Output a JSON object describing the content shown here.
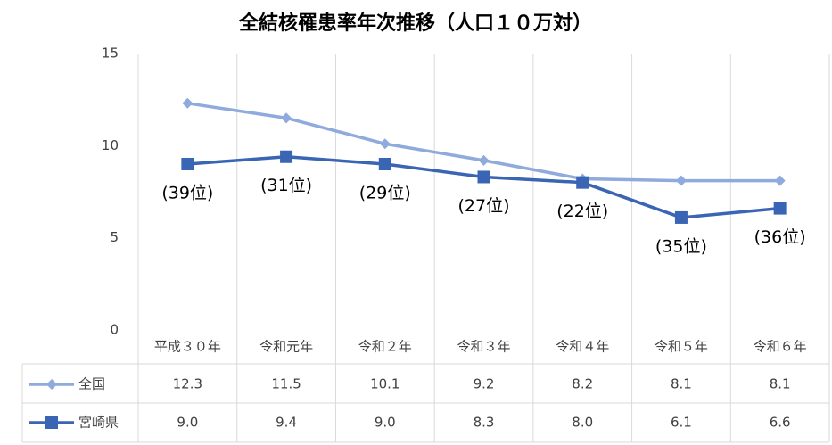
{
  "chart_data": {
    "type": "line",
    "title": "全結核罹患率年次推移（人口１０万対）",
    "categories": [
      "平成３０年",
      "令和元年",
      "令和２年",
      "令和３年",
      "令和４年",
      "令和５年",
      "令和６年"
    ],
    "series": [
      {
        "name": "全国",
        "color": "#8faadc",
        "marker": "diamond",
        "values": [
          12.3,
          11.5,
          10.1,
          9.2,
          8.2,
          8.1,
          8.1
        ],
        "value_labels": [
          "12.3",
          "11.5",
          "10.1",
          "9.2",
          "8.2",
          "8.1",
          "8.1"
        ]
      },
      {
        "name": "宮崎県",
        "color": "#3a64b4",
        "marker": "square",
        "values": [
          9.0,
          9.4,
          9.0,
          8.3,
          8.0,
          6.1,
          6.6
        ],
        "value_labels": [
          "9.0",
          "9.4",
          "9.0",
          "8.3",
          "8.0",
          "6.1",
          "6.6"
        ],
        "annotations": [
          "(39位)",
          "(31位)",
          "(29位)",
          "(27位)",
          "(22位)",
          "(35位)",
          "(36位)"
        ]
      }
    ],
    "ylim": [
      0,
      15
    ],
    "yticks": [
      0,
      5,
      10,
      15
    ],
    "grid": true,
    "data_table": true
  }
}
